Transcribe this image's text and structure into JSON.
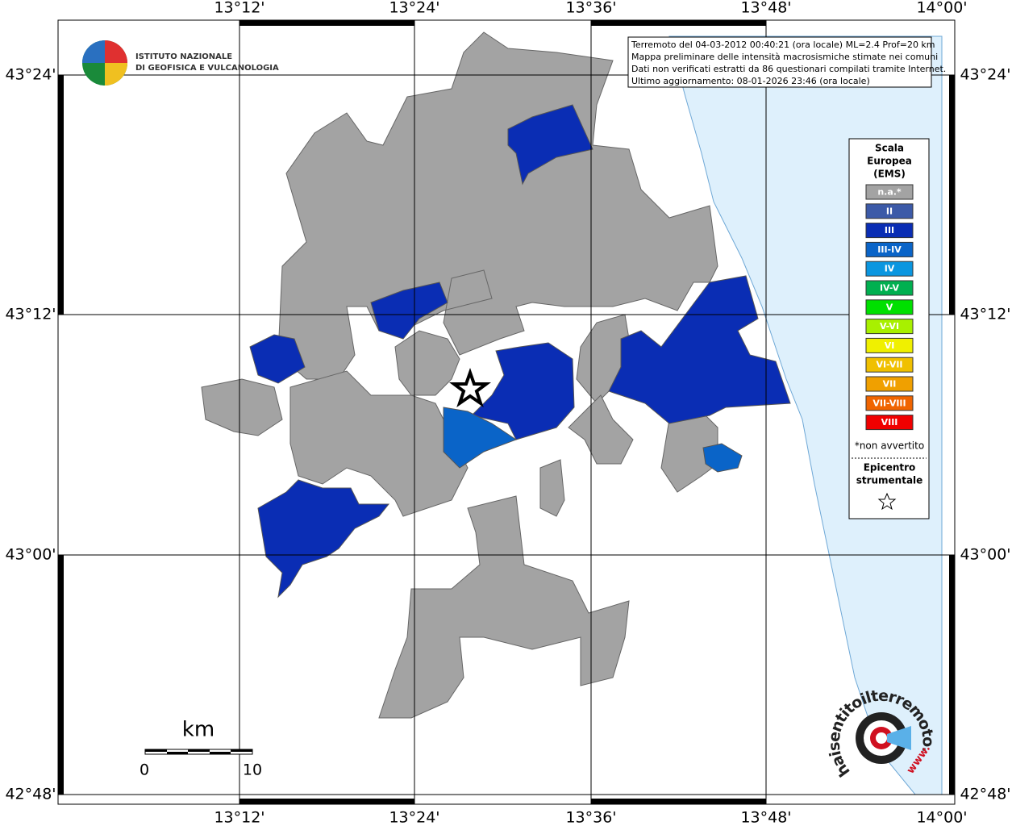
{
  "lon_labels": [
    "13°12'",
    "13°24'",
    "13°36'",
    "13°48'",
    "14°00'"
  ],
  "lat_labels": [
    "43°24'",
    "43°12'",
    "43°00'",
    "42°48'"
  ],
  "logo": {
    "lines": [
      "ISTITUTO NAZIONALE",
      "DI GEOFISICA E VULCANOLOGIA"
    ]
  },
  "info": {
    "lines": [
      "Terremoto del 04-03-2012 00:40:21 (ora locale) ML=2.4 Prof=20 km",
      "Mappa preliminare delle intensità macrosismiche stimate nei comuni",
      "Dati non verificati estratti da 86 questionari compilati tramite Internet.",
      "Ultimo aggiornamento: 08-01-2026 23:46 (ora locale)"
    ]
  },
  "legend": {
    "title": [
      "Scala",
      "Europea",
      "(EMS)"
    ],
    "items": [
      {
        "label": "n.a.*",
        "color": "#a3a3a3"
      },
      {
        "label": "II",
        "color": "#3c5aa8"
      },
      {
        "label": "III",
        "color": "#0a2db4"
      },
      {
        "label": "III-IV",
        "color": "#0a64c8"
      },
      {
        "label": "IV",
        "color": "#0a96e0"
      },
      {
        "label": "IV-V",
        "color": "#00b050"
      },
      {
        "label": "V",
        "color": "#00e000"
      },
      {
        "label": "V-VI",
        "color": "#a8f000"
      },
      {
        "label": "VI",
        "color": "#f0f000"
      },
      {
        "label": "VI-VII",
        "color": "#f0c000"
      },
      {
        "label": "VII",
        "color": "#f0a000"
      },
      {
        "label": "VII-VIII",
        "color": "#f06400"
      },
      {
        "label": "VIII",
        "color": "#f00000"
      }
    ],
    "note": "*non avvertito",
    "epicenter": [
      "Epicentro",
      "strumentale"
    ]
  },
  "scale_bar": {
    "unit": "km",
    "labels": [
      "0",
      "10"
    ]
  },
  "brand": {
    "text": "haisentitoilterremoto.it",
    "prefix": "www."
  }
}
